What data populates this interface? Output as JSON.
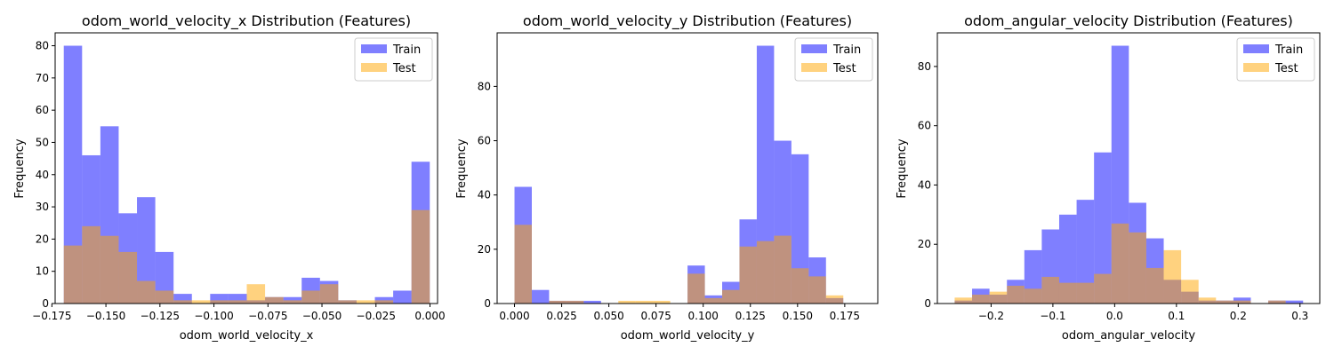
{
  "colors": {
    "train": "#0000ff",
    "test": "#ffa500",
    "train_alpha": 0.5,
    "test_alpha": 0.5
  },
  "chart_data": [
    {
      "type": "histogram",
      "title": "odom_world_velocity_x Distribution (Features)",
      "xlabel": "odom_world_velocity_x",
      "ylabel": "Frequency",
      "xlim": [
        -0.1735,
        0.0035
      ],
      "ylim": [
        0,
        84
      ],
      "xticks": [
        -0.175,
        -0.15,
        -0.125,
        -0.1,
        -0.075,
        -0.05,
        -0.025,
        0.0
      ],
      "xtick_labels": [
        "−0.175",
        "−0.150",
        "−0.125",
        "−0.100",
        "−0.075",
        "−0.050",
        "−0.025",
        "0.000"
      ],
      "yticks": [
        0,
        10,
        20,
        30,
        40,
        50,
        60,
        70,
        80
      ],
      "ytick_labels": [
        "0",
        "10",
        "20",
        "30",
        "40",
        "50",
        "60",
        "70",
        "80"
      ],
      "legend": {
        "position": "top-right",
        "entries": [
          "Train",
          "Test"
        ]
      },
      "series": [
        {
          "name": "Train",
          "bin_start": -0.1695,
          "bin_width": 0.00847,
          "values": [
            80,
            46,
            55,
            28,
            33,
            16,
            3,
            0,
            3,
            3,
            1,
            2,
            2,
            8,
            7,
            1,
            0,
            2,
            4,
            44
          ]
        },
        {
          "name": "Test",
          "bin_start": -0.1695,
          "bin_width": 0.00847,
          "values": [
            18,
            24,
            21,
            16,
            7,
            4,
            1,
            1,
            1,
            1,
            6,
            2,
            1,
            4,
            6,
            1,
            1,
            1,
            0,
            29
          ]
        }
      ]
    },
    {
      "type": "histogram",
      "title": "odom_world_velocity_y Distribution (Features)",
      "xlabel": "odom_world_velocity_y",
      "ylabel": "Frequency",
      "xlim": [
        -0.0092,
        0.1925
      ],
      "ylim": [
        0,
        99.75
      ],
      "xticks": [
        0.0,
        0.025,
        0.05,
        0.075,
        0.1,
        0.125,
        0.15,
        0.175
      ],
      "xtick_labels": [
        "0.000",
        "0.025",
        "0.050",
        "0.075",
        "0.100",
        "0.125",
        "0.150",
        "0.175"
      ],
      "yticks": [
        0,
        20,
        40,
        60,
        80
      ],
      "ytick_labels": [
        "0",
        "20",
        "40",
        "60",
        "80"
      ],
      "legend": {
        "position": "top-right",
        "entries": [
          "Train",
          "Test"
        ]
      },
      "series": [
        {
          "name": "Train",
          "bin_start": 0.0,
          "bin_width": 0.00917,
          "values": [
            43,
            5,
            1,
            1,
            1,
            0,
            0,
            0,
            0,
            0,
            14,
            3,
            8,
            31,
            95,
            60,
            55,
            17,
            2
          ]
        },
        {
          "name": "Test",
          "bin_start": 0.0,
          "bin_width": 0.00917,
          "values": [
            29,
            0,
            1,
            1,
            0,
            0,
            1,
            1,
            1,
            0,
            11,
            2,
            5,
            21,
            23,
            25,
            13,
            10,
            3
          ]
        }
      ]
    },
    {
      "type": "histogram",
      "title": "odom_angular_velocity Distribution (Features)",
      "xlabel": "odom_angular_velocity",
      "ylabel": "Frequency",
      "xlim": [
        -0.287,
        0.332
      ],
      "ylim": [
        0,
        91.35
      ],
      "xticks": [
        -0.2,
        -0.1,
        0.0,
        0.1,
        0.2,
        0.3
      ],
      "xtick_labels": [
        "−0.2",
        "−0.1",
        "0.0",
        "0.1",
        "0.2",
        "0.3"
      ],
      "yticks": [
        0,
        20,
        40,
        60,
        80
      ],
      "ytick_labels": [
        "0",
        "20",
        "40",
        "60",
        "80"
      ],
      "legend": {
        "position": "top-right",
        "entries": [
          "Train",
          "Test"
        ]
      },
      "series": [
        {
          "name": "Train",
          "bin_start": -0.259,
          "bin_width": 0.0282,
          "values": [
            1,
            5,
            3,
            8,
            18,
            25,
            30,
            35,
            51,
            87,
            34,
            22,
            8,
            4,
            1,
            1,
            2,
            0,
            1,
            1
          ]
        },
        {
          "name": "Test",
          "bin_start": -0.259,
          "bin_width": 0.0282,
          "values": [
            2,
            3,
            4,
            6,
            5,
            9,
            7,
            7,
            10,
            27,
            24,
            12,
            18,
            8,
            2,
            1,
            1,
            0,
            1,
            0
          ]
        }
      ]
    }
  ]
}
